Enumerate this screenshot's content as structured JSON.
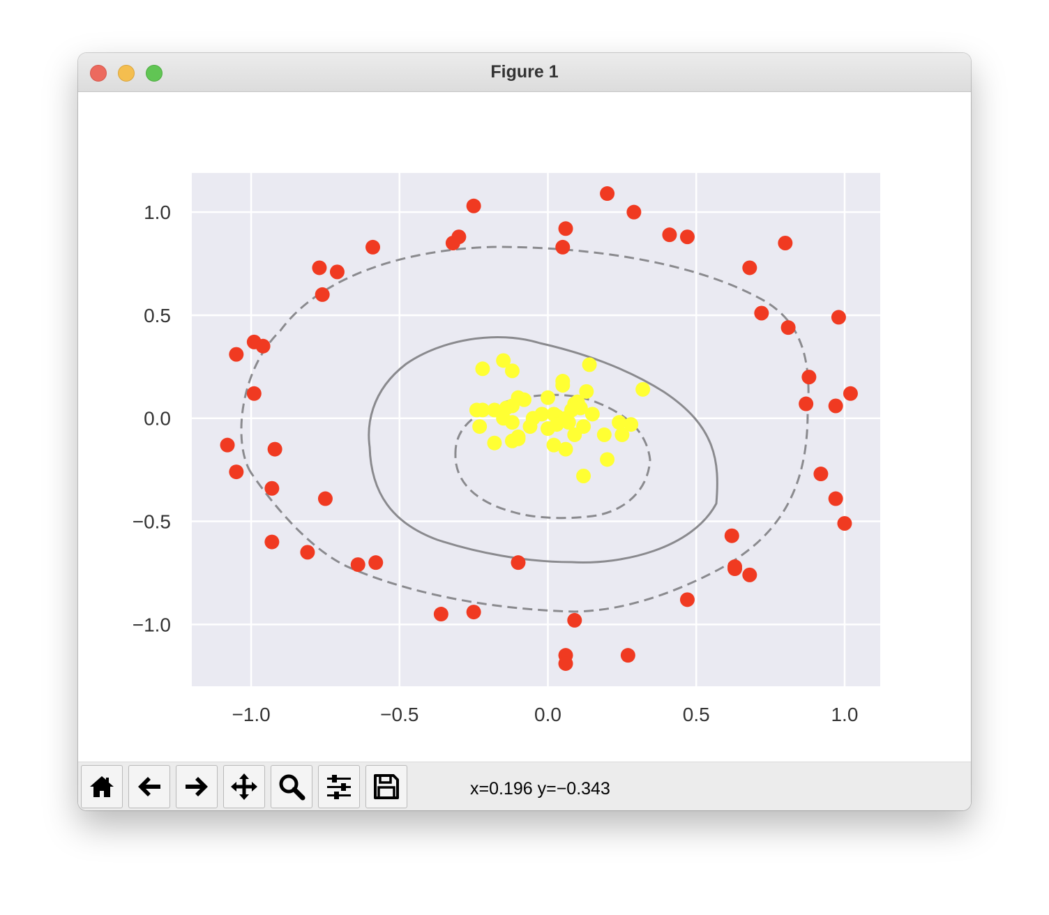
{
  "window": {
    "title": "Figure 1"
  },
  "toolbar": {
    "buttons": [
      {
        "name": "home-button",
        "icon": "home-icon"
      },
      {
        "name": "back-button",
        "icon": "arrow-left-icon"
      },
      {
        "name": "forward-button",
        "icon": "arrow-right-icon"
      },
      {
        "name": "pan-button",
        "icon": "move-icon"
      },
      {
        "name": "zoom-button",
        "icon": "magnifier-icon"
      },
      {
        "name": "configure-subplots-button",
        "icon": "sliders-icon"
      },
      {
        "name": "save-button",
        "icon": "floppy-disk-icon"
      }
    ],
    "coords": "x=0.196 y=−0.343"
  },
  "chart_data": {
    "type": "scatter",
    "title": "",
    "xlabel": "",
    "ylabel": "",
    "xlim": [
      -1.2,
      1.12
    ],
    "ylim": [
      -1.3,
      1.19
    ],
    "xticks": [
      -1.0,
      -0.5,
      0.0,
      0.5,
      1.0
    ],
    "yticks": [
      1.0,
      0.5,
      0.0,
      -0.5,
      -1.0
    ],
    "xtick_labels": [
      "−1.0",
      "−0.5",
      "0.0",
      "0.5",
      "1.0"
    ],
    "ytick_labels": [
      "1.0",
      "0.5",
      "0.0",
      "−0.5",
      "−1.0"
    ],
    "grid": true,
    "background": "#eaeaf2",
    "series": [
      {
        "color": "#f03a21",
        "points": [
          [
            -0.25,
            1.03
          ],
          [
            0.2,
            1.09
          ],
          [
            0.29,
            1.0
          ],
          [
            0.06,
            0.92
          ],
          [
            0.05,
            0.83
          ],
          [
            -0.3,
            0.88
          ],
          [
            -0.32,
            0.85
          ],
          [
            0.41,
            0.89
          ],
          [
            0.47,
            0.88
          ],
          [
            0.8,
            0.85
          ],
          [
            0.68,
            0.73
          ],
          [
            0.72,
            0.51
          ],
          [
            0.81,
            0.44
          ],
          [
            0.98,
            0.49
          ],
          [
            -0.59,
            0.83
          ],
          [
            -0.77,
            0.73
          ],
          [
            -0.71,
            0.71
          ],
          [
            -0.76,
            0.6
          ],
          [
            -0.99,
            0.37
          ],
          [
            -0.96,
            0.35
          ],
          [
            -1.05,
            0.31
          ],
          [
            -0.99,
            0.12
          ],
          [
            0.88,
            0.2
          ],
          [
            0.87,
            0.07
          ],
          [
            0.97,
            0.06
          ],
          [
            1.02,
            0.12
          ],
          [
            -1.08,
            -0.13
          ],
          [
            -1.05,
            -0.26
          ],
          [
            -0.92,
            -0.15
          ],
          [
            -0.93,
            -0.34
          ],
          [
            -0.75,
            -0.39
          ],
          [
            -0.93,
            -0.6
          ],
          [
            -0.81,
            -0.65
          ],
          [
            -0.64,
            -0.71
          ],
          [
            -0.58,
            -0.7
          ],
          [
            -0.1,
            -0.7
          ],
          [
            0.92,
            -0.27
          ],
          [
            0.97,
            -0.39
          ],
          [
            1.0,
            -0.51
          ],
          [
            0.62,
            -0.57
          ],
          [
            0.63,
            -0.72
          ],
          [
            0.63,
            -0.73
          ],
          [
            0.68,
            -0.76
          ],
          [
            0.47,
            -0.88
          ],
          [
            -0.36,
            -0.95
          ],
          [
            -0.25,
            -0.94
          ],
          [
            0.09,
            -0.98
          ],
          [
            0.06,
            -1.15
          ],
          [
            0.06,
            -1.19
          ],
          [
            0.27,
            -1.15
          ]
        ]
      },
      {
        "color": "#ffff33",
        "points": [
          [
            -0.22,
            0.24
          ],
          [
            -0.15,
            0.28
          ],
          [
            -0.12,
            0.23
          ],
          [
            0.14,
            0.26
          ],
          [
            0.32,
            0.14
          ],
          [
            0.05,
            0.18
          ],
          [
            0.05,
            0.16
          ],
          [
            0.13,
            0.13
          ],
          [
            0.0,
            0.1
          ],
          [
            -0.1,
            0.1
          ],
          [
            -0.08,
            0.09
          ],
          [
            -0.12,
            0.06
          ],
          [
            -0.14,
            0.05
          ],
          [
            -0.18,
            0.04
          ],
          [
            -0.24,
            0.04
          ],
          [
            -0.22,
            0.04
          ],
          [
            0.09,
            0.07
          ],
          [
            0.1,
            0.08
          ],
          [
            0.11,
            0.05
          ],
          [
            0.08,
            0.04
          ],
          [
            0.15,
            0.02
          ],
          [
            -0.05,
            0.0
          ],
          [
            -0.02,
            0.02
          ],
          [
            0.02,
            0.02
          ],
          [
            0.03,
            0.01
          ],
          [
            0.06,
            0.0
          ],
          [
            0.07,
            -0.02
          ],
          [
            -0.12,
            -0.02
          ],
          [
            -0.15,
            0.0
          ],
          [
            -0.06,
            -0.04
          ],
          [
            -0.23,
            -0.04
          ],
          [
            0.0,
            -0.05
          ],
          [
            0.03,
            -0.03
          ],
          [
            0.12,
            -0.04
          ],
          [
            0.24,
            -0.02
          ],
          [
            0.28,
            -0.03
          ],
          [
            0.25,
            -0.08
          ],
          [
            0.19,
            -0.08
          ],
          [
            0.09,
            -0.08
          ],
          [
            -0.1,
            -0.1
          ],
          [
            -0.12,
            -0.11
          ],
          [
            -0.18,
            -0.12
          ],
          [
            0.02,
            -0.13
          ],
          [
            0.06,
            -0.15
          ],
          [
            0.2,
            -0.2
          ],
          [
            0.12,
            -0.28
          ],
          [
            -0.1,
            -0.09
          ]
        ]
      }
    ],
    "decision_contours": [
      {
        "style": "dashed",
        "level": "outer margin"
      },
      {
        "style": "solid",
        "level": "boundary"
      },
      {
        "style": "dashed",
        "level": "inner margin"
      }
    ]
  }
}
